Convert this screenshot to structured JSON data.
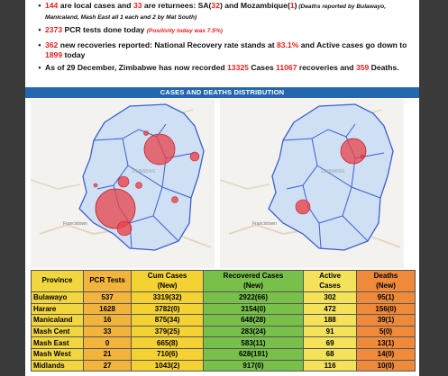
{
  "bullets": [
    {
      "n1": "144",
      "t1": " are local cases and ",
      "n2": "33",
      "t2": " are returnees: SA(",
      "n3": "32",
      "t3": ") and Mozambique(",
      "n4": "1",
      "t4": ")",
      "note": " (Deaths reported by Bulawayo, Manicaland, Mash East all 1 each and 2 by Mat South)"
    },
    {
      "n1": "2373",
      "t1": " PCR tests done today ",
      "note": "(Positivity today was 7.5%)"
    },
    {
      "n1": "362",
      "t1": " new recoveries reported: National Recovery rate stands at ",
      "n2": "83.1%",
      "t2": " and Active cases go down to ",
      "n3": "1899",
      "t3": " today"
    },
    {
      "t0": "As of 29 December, Zimbabwe has now recorded ",
      "n1": "13325",
      "t1": "  Cases ",
      "n2": "11067",
      "t2": " recoveries and ",
      "n3": "359",
      "t3": " Deaths."
    }
  ],
  "section_title": "CASES AND DEATHS DISTRIBUTION",
  "maps": {
    "left_labels": [
      "Francistown",
      "ZIMBABWE"
    ],
    "right_labels": [
      "Francistown",
      "ZIMBABWE"
    ],
    "colors": {
      "bubble": "#e8434a",
      "border": "#3a5fcf",
      "land": "#cfe0f5",
      "base": "#f4f2ee"
    }
  },
  "table": {
    "headers": [
      {
        "line1": "Province",
        "line2": ""
      },
      {
        "line1": "PCR Tests",
        "line2": ""
      },
      {
        "line1": "Cum Cases",
        "line2": "(New)"
      },
      {
        "line1": "Recovered Cases",
        "line2": "(New)"
      },
      {
        "line1": "Active",
        "line2": "Cases"
      },
      {
        "line1": "Deaths",
        "line2": "(New)"
      }
    ],
    "rows": [
      [
        "Bulawayo",
        "537",
        "3319(32)",
        "2922(66)",
        "302",
        "95(1)"
      ],
      [
        "Harare",
        "1628",
        "3782(0)",
        "3154(0)",
        "472",
        "156(0)"
      ],
      [
        "Manicaland",
        "16",
        "875(34)",
        "648(28)",
        "188",
        "39(1)"
      ],
      [
        "Mash Cent",
        "33",
        "379(25)",
        "283(24)",
        "91",
        "5(0)"
      ],
      [
        "Mash East",
        "0",
        "665(8)",
        "583(11)",
        "69",
        "13(1)"
      ],
      [
        "Mash West",
        "21",
        "710(6)",
        "628(191)",
        "68",
        "14(0)"
      ],
      [
        "Midlands",
        "27",
        "1043(2)",
        "917(0)",
        "116",
        "10(0)"
      ]
    ]
  }
}
